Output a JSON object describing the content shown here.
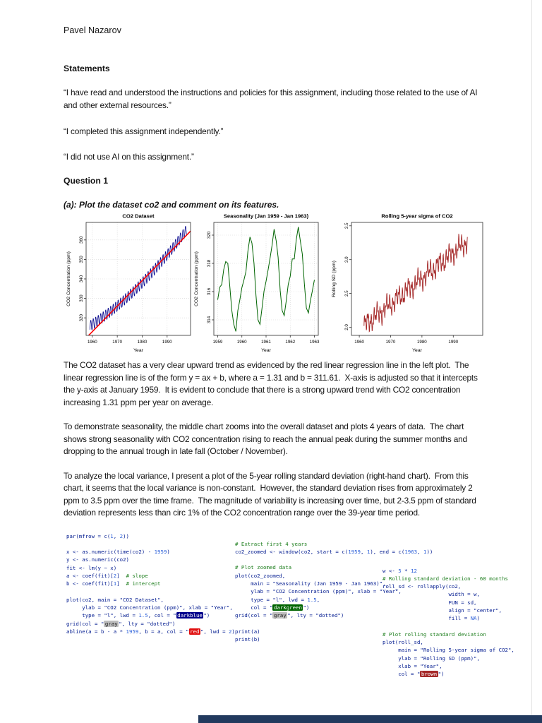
{
  "document": {
    "author": "Pavel Nazarov",
    "statements": {
      "heading": "Statements",
      "items": [
        "“I have read and understood the instructions and policies for this assignment, including those related to the use of AI and other external resources.”",
        "“I completed this assignment independently.”",
        "“I did not use AI on this assignment.”"
      ]
    },
    "question1": {
      "heading": "Question 1",
      "part_a_heading": "(a): Plot the dataset co2 and comment on its features.",
      "paragraphs": [
        "The CO2 dataset has a very clear upward trend as evidenced by the red linear regression line in the left plot.  The linear regression line is of the form y = ax + b, where a = 1.31 and b = 311.61.  X-axis is adjusted so that it intercepts the y-axis at January 1959.  It is evident to conclude that there is a strong upward trend with CO2 concentration increasing 1.31 ppm per year on average.",
        "To demonstrate seasonality, the middle chart zooms into the overall dataset and plots 4 years of data.  The chart shows strong seasonality with CO2 concentration rising to reach the annual peak during the summer months and dropping to the annual trough in late fall (October / November).",
        "To analyze the local variance, I present a plot of the 5-year rolling standard deviation (right-hand chart).  From this chart, it seems that the local variance is non-constant.  However, the standard deviation rises from approximately 2 ppm to 3.5 ppm over the time frame.  The magnitude of variability is increasing over time, but 2-3.5 ppm of standard deviation represents less than circ 1% of the CO2 concentration range over the 39-year time period."
      ]
    }
  },
  "chart_data": [
    {
      "type": "line",
      "title": "CO2 Dataset",
      "xlabel": "Year",
      "ylabel": "CO2 Concentration (ppm)",
      "xlim": [
        1957.5,
        1999.4
      ],
      "ylim": [
        311,
        369
      ],
      "xticks": [
        "1960",
        "1970",
        "1980",
        "1990"
      ],
      "yticks": [
        "320",
        "330",
        "340",
        "350",
        "360"
      ],
      "grid": true,
      "series": [
        {
          "name": "co2-monthly",
          "color": "#00008B",
          "width": 0.8,
          "model": {
            "kind": "seasonal_trend",
            "start": 1959,
            "end": 1997.92,
            "x0": 1959,
            "intercept": 315.8,
            "slope": 0.803,
            "quad": 0.01205,
            "amplitude": 2.7,
            "peak": 0.37
          }
        },
        {
          "name": "linear-regression-a-1.31-b-311.61",
          "color": "#FF0000",
          "width": 1.6,
          "model": {
            "kind": "linear",
            "start": 1957.5,
            "end": 1999.4,
            "x0": 1959,
            "intercept": 311.61,
            "slope": 1.31
          }
        }
      ]
    },
    {
      "type": "line",
      "title": "Seasonality (Jan 1959 - Jan 1963)",
      "xlabel": "Year",
      "ylabel": "CO2 Concentration (ppm)",
      "xlim": [
        1958.84,
        1963.16
      ],
      "ylim": [
        312.9,
        320.9
      ],
      "xticks": [
        "1959",
        "1960",
        "1961",
        "1962",
        "1963"
      ],
      "yticks": [
        "314",
        "316",
        "318",
        "320"
      ],
      "grid": true,
      "series": [
        {
          "name": "co2-zoomed",
          "color": "#006400",
          "width": 1.0,
          "x_start": 1959,
          "x_step": 0.0833333,
          "values": [
            315.42,
            316.31,
            316.5,
            317.56,
            318.13,
            318.0,
            316.39,
            314.65,
            313.68,
            313.18,
            314.66,
            315.43,
            316.27,
            316.81,
            317.42,
            318.87,
            319.87,
            319.43,
            318.01,
            315.74,
            314.0,
            313.68,
            314.84,
            316.03,
            316.73,
            317.54,
            318.38,
            319.31,
            320.42,
            319.61,
            318.42,
            316.09,
            314.66,
            314.3,
            315.31,
            316.5,
            317.1,
            318.31,
            318.31,
            319.68,
            320.58,
            319.61,
            318.65,
            316.6,
            314.84,
            314.49,
            315.34,
            316.08,
            316.83
          ]
        }
      ]
    },
    {
      "type": "line",
      "title": "Rolling 5-year sigma of CO2",
      "xlabel": "Year",
      "ylabel": "Rolling SD (ppm)",
      "xlim": [
        1957.5,
        1999.4
      ],
      "ylim": [
        1.88,
        3.55
      ],
      "xticks": [
        "1960",
        "1970",
        "1980",
        "1990"
      ],
      "yticks": [
        "2.0",
        "2.5",
        "3.0",
        "3.5"
      ],
      "grid": false,
      "series": [
        {
          "name": "rolling-5yr-sd",
          "color": "#A52A2A",
          "width": 0.9,
          "model": {
            "kind": "osc_trend",
            "start": 1961.5,
            "end": 1994.54,
            "base": 2.02,
            "slope": 0.038,
            "amp1": 0.09,
            "period1": 1.0,
            "amp2": 0.07,
            "period2": 0.45,
            "amp3": 0.06,
            "period3": 3.3
          }
        }
      ]
    }
  ],
  "code": {
    "palette": {
      "d": "#001a8f",
      "n": "#2b5fd9",
      "m": "#1e7e1e"
    },
    "columns": [
      {
        "lines": [
          [
            {
              "t": "par(mfrow = c(",
              "c": "d"
            },
            {
              "t": "1",
              "c": "n"
            },
            {
              "t": ", ",
              "c": "d"
            },
            {
              "t": "2",
              "c": "n"
            },
            {
              "t": "))",
              "c": "d"
            }
          ],
          [],
          [
            {
              "t": "x <- as.numeric(time(co2) - ",
              "c": "d"
            },
            {
              "t": "1959",
              "c": "n"
            },
            {
              "t": ")",
              "c": "d"
            }
          ],
          [
            {
              "t": "y <- as.numeric(co2)",
              "c": "d"
            }
          ],
          [
            {
              "t": "fit <- lm(y ~ x)",
              "c": "d"
            }
          ],
          [
            {
              "t": "a <- coef(fit)[",
              "c": "d"
            },
            {
              "t": "2",
              "c": "n"
            },
            {
              "t": "]  ",
              "c": "d"
            },
            {
              "t": "# slope",
              "c": "m"
            }
          ],
          [
            {
              "t": "b <- coef(fit)[",
              "c": "d"
            },
            {
              "t": "1",
              "c": "n"
            },
            {
              "t": "]  ",
              "c": "d"
            },
            {
              "t": "# intercept",
              "c": "m"
            }
          ],
          [],
          [
            {
              "t": "plot(co2, main = \"CO2 Dataset\",",
              "c": "d"
            }
          ],
          [
            {
              "t": "     ylab = \"CO2 Concentration (ppm)\", xlab = \"Year\",",
              "c": "d"
            }
          ],
          [
            {
              "t": "     type = \"l\", lwd = ",
              "c": "d"
            },
            {
              "t": "1.5",
              "c": "n"
            },
            {
              "t": ", col = \"",
              "c": "d"
            },
            {
              "t": "darkblue",
              "bg": "#00008B",
              "fg": "#FFFFFF"
            },
            {
              "t": "\")",
              "c": "d"
            }
          ],
          [
            {
              "t": "grid(col = \"",
              "c": "d"
            },
            {
              "t": "gray",
              "bg": "#BEBEBE",
              "fg": "#1a1a1a"
            },
            {
              "t": "\", lty = \"dotted\")",
              "c": "d"
            }
          ],
          [
            {
              "t": "abline(a = b - a * ",
              "c": "d"
            },
            {
              "t": "1959",
              "c": "n"
            },
            {
              "t": ", b = a, col = \"",
              "c": "d"
            },
            {
              "t": "red",
              "bg": "#E01010",
              "fg": "#FFFFFF"
            },
            {
              "t": "\", lwd = ",
              "c": "d"
            },
            {
              "t": "2",
              "c": "n"
            },
            {
              "t": ")",
              "c": "d"
            }
          ]
        ]
      },
      {
        "lines": [
          [
            {
              "t": "# Extract first 4 years",
              "c": "m"
            }
          ],
          [
            {
              "t": "co2_zoomed <- window(co2, start = c(",
              "c": "d"
            },
            {
              "t": "1959",
              "c": "n"
            },
            {
              "t": ", ",
              "c": "d"
            },
            {
              "t": "1",
              "c": "n"
            },
            {
              "t": "), end = c(",
              "c": "d"
            },
            {
              "t": "1963",
              "c": "n"
            },
            {
              "t": ", ",
              "c": "d"
            },
            {
              "t": "1",
              "c": "n"
            },
            {
              "t": "))",
              "c": "d"
            }
          ],
          [],
          [
            {
              "t": "# Plot zoomed data",
              "c": "m"
            }
          ],
          [
            {
              "t": "plot(co2_zoomed,",
              "c": "d"
            }
          ],
          [
            {
              "t": "     main = \"Seasonality (Jan 1959 - Jan 1963)\",",
              "c": "d"
            }
          ],
          [
            {
              "t": "     ylab = \"CO2 Concentration (ppm)\", xlab = \"Year\",",
              "c": "d"
            }
          ],
          [
            {
              "t": "     type = \"l\", lwd = ",
              "c": "d"
            },
            {
              "t": "1.5",
              "c": "n"
            },
            {
              "t": ",",
              "c": "d"
            }
          ],
          [
            {
              "t": "     col = \"",
              "c": "d"
            },
            {
              "t": "darkgreen",
              "bg": "#006400",
              "fg": "#FFFFFF"
            },
            {
              "t": "\")",
              "c": "d"
            }
          ],
          [
            {
              "t": "grid(col = \"",
              "c": "d"
            },
            {
              "t": "gray",
              "bg": "#BEBEBE",
              "fg": "#1a1a1a"
            },
            {
              "t": "\", lty = \"dotted\")",
              "c": "d"
            }
          ],
          [],
          [
            {
              "t": "print(a)",
              "c": "d"
            }
          ],
          [
            {
              "t": "print(b)",
              "c": "d"
            }
          ]
        ]
      },
      {
        "lines": [
          [
            {
              "t": "w <- ",
              "c": "d"
            },
            {
              "t": "5",
              "c": "n"
            },
            {
              "t": " * ",
              "c": "d"
            },
            {
              "t": "12",
              "c": "n"
            }
          ],
          [
            {
              "t": "# Rolling standard deviation - 60 months",
              "c": "m"
            }
          ],
          [
            {
              "t": "roll_sd <- rollapply(co2,",
              "c": "d"
            }
          ],
          [
            {
              "t": "                     width = w,",
              "c": "d"
            }
          ],
          [
            {
              "t": "                     FUN = sd,",
              "c": "d"
            }
          ],
          [
            {
              "t": "                     align = \"center\",",
              "c": "d"
            }
          ],
          [
            {
              "t": "                     fill = ",
              "c": "d"
            },
            {
              "t": "NA",
              "c": "n"
            },
            {
              "t": ")",
              "c": "d"
            }
          ],
          [],
          [
            {
              "t": "# Plot rolling standard deviation",
              "c": "m"
            }
          ],
          [
            {
              "t": "plot(roll_sd,",
              "c": "d"
            }
          ],
          [
            {
              "t": "     main = \"Rolling 5-year sigma of CO2\",",
              "c": "d"
            }
          ],
          [
            {
              "t": "     ylab = \"Rolling SD (ppm)\",",
              "c": "d"
            }
          ],
          [
            {
              "t": "     xlab = \"Year\",",
              "c": "d"
            }
          ],
          [
            {
              "t": "     col = \"",
              "c": "d"
            },
            {
              "t": "brown",
              "bg": "#A52A2A",
              "fg": "#FFFFFF"
            },
            {
              "t": "\")",
              "c": "d"
            }
          ]
        ]
      }
    ]
  },
  "ui": {
    "bottom_bar_color": "#223A5E",
    "scrollbar_color": "#E4E4E4",
    "page_background": "#FFFFFF"
  }
}
